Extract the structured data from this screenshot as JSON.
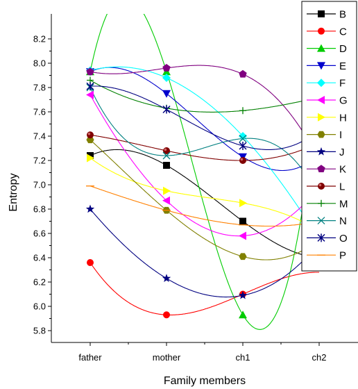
{
  "chart_data": {
    "type": "line",
    "title": "",
    "xlabel": "Family members",
    "ylabel": "Entropy",
    "categories": [
      "father",
      "mother",
      "ch1",
      "ch2"
    ],
    "ylim": [
      5.7,
      8.25
    ],
    "yticks": [
      "5.8",
      "6.0",
      "6.2",
      "6.4",
      "6.6",
      "6.8",
      "7.0",
      "7.2",
      "7.4",
      "7.6",
      "7.8",
      "8.0",
      "8.2"
    ],
    "ytick_values": [
      5.8,
      6.0,
      6.2,
      6.4,
      6.6,
      6.8,
      7.0,
      7.2,
      7.4,
      7.6,
      7.8,
      8.0,
      8.2
    ],
    "legend_position": "top-right",
    "grid": false,
    "series": [
      {
        "name": "B",
        "color": "#000000",
        "marker": "square",
        "values": [
          7.24,
          7.16,
          6.7,
          6.4
        ]
      },
      {
        "name": "C",
        "color": "#ff0000",
        "marker": "circle",
        "values": [
          6.36,
          5.93,
          6.1,
          6.28
        ]
      },
      {
        "name": "D",
        "color": "#00cc00",
        "marker": "triangle-up",
        "values": [
          7.93,
          7.93,
          5.93,
          7.85
        ]
      },
      {
        "name": "E",
        "color": "#0000cc",
        "marker": "triangle-down",
        "values": [
          7.93,
          7.75,
          7.23,
          7.25
        ]
      },
      {
        "name": "F",
        "color": "#00ffff",
        "marker": "diamond",
        "values": [
          7.94,
          7.88,
          7.4,
          6.55
        ]
      },
      {
        "name": "G",
        "color": "#ff00ff",
        "marker": "triangle-left",
        "values": [
          7.74,
          6.87,
          6.58,
          6.98
        ]
      },
      {
        "name": "H",
        "color": "#ffff00",
        "marker": "triangle-right",
        "values": [
          7.22,
          6.95,
          6.85,
          6.62
        ]
      },
      {
        "name": "I",
        "color": "#808000",
        "marker": "hexagon",
        "values": [
          7.37,
          6.79,
          6.41,
          6.55
        ]
      },
      {
        "name": "J",
        "color": "#000080",
        "marker": "star",
        "values": [
          6.8,
          6.23,
          6.09,
          6.52
        ]
      },
      {
        "name": "K",
        "color": "#800080",
        "marker": "pentagon",
        "values": [
          7.93,
          7.96,
          7.91,
          7.2
        ]
      },
      {
        "name": "L",
        "color": "#800000",
        "marker": "sphere",
        "values": [
          7.41,
          7.28,
          7.2,
          7.35
        ]
      },
      {
        "name": "M",
        "color": "#008000",
        "marker": "plus",
        "values": [
          7.86,
          7.63,
          7.61,
          7.72
        ]
      },
      {
        "name": "N",
        "color": "#008080",
        "marker": "x",
        "values": [
          7.8,
          7.24,
          7.38,
          6.9
        ]
      },
      {
        "name": "O",
        "color": "#000080",
        "marker": "asterisk",
        "values": [
          7.81,
          7.62,
          7.32,
          7.45
        ]
      },
      {
        "name": "P",
        "color": "#ff8000",
        "marker": "dash",
        "values": [
          6.99,
          6.79,
          6.67,
          6.7
        ]
      }
    ]
  }
}
